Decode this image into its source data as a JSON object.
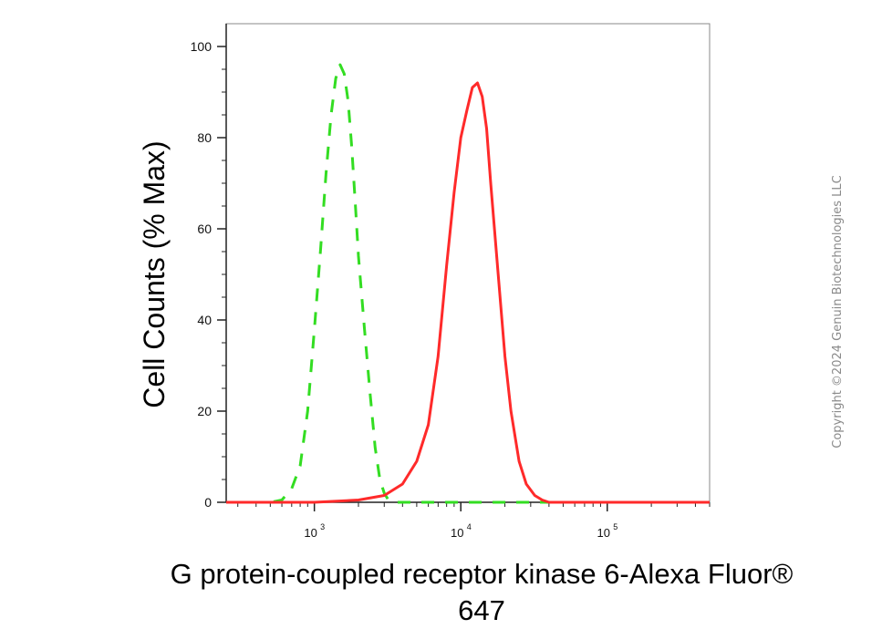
{
  "chart_data": {
    "type": "line",
    "xscale": "log",
    "xlim": [
      250,
      500000
    ],
    "ylim": [
      0,
      100
    ],
    "ylabel": "Cell Counts (% Max)",
    "xlabel_line1": "G protein-coupled receptor kinase 6-Alexa Fluor®",
    "xlabel_line2": "647",
    "yticks": [
      0,
      20,
      40,
      60,
      80,
      100
    ],
    "xticks": [
      {
        "base": "10",
        "exp": "3",
        "value": 1000
      },
      {
        "base": "10",
        "exp": "4",
        "value": 10000
      },
      {
        "base": "10",
        "exp": "5",
        "value": 100000
      }
    ],
    "series": [
      {
        "color": "#33dd22",
        "style": "dashed",
        "x": [
          250,
          500,
          600,
          700,
          800,
          900,
          1000,
          1100,
          1200,
          1300,
          1400,
          1500,
          1600,
          1700,
          1800,
          1900,
          2000,
          2200,
          2400,
          2600,
          2800,
          3000,
          3200,
          3600,
          4000,
          5000,
          8000,
          20000,
          100000,
          500000
        ],
        "y": [
          0,
          0,
          0.5,
          3,
          8,
          20,
          38,
          55,
          72,
          85,
          93,
          96,
          94,
          88,
          78,
          66,
          54,
          38,
          24,
          12,
          5,
          2,
          0.5,
          0,
          0,
          0,
          0,
          0,
          0,
          0
        ]
      },
      {
        "color": "#ff2a2a",
        "style": "solid",
        "x": [
          250,
          1000,
          2000,
          3000,
          4000,
          5000,
          6000,
          7000,
          8000,
          9000,
          10000,
          11000,
          12000,
          13000,
          14000,
          15000,
          16000,
          18000,
          20000,
          22000,
          25000,
          28000,
          32000,
          36000,
          40000,
          50000,
          60000,
          100000,
          500000
        ],
        "y": [
          0,
          0,
          0.5,
          1.5,
          4,
          9,
          17,
          32,
          52,
          68,
          80,
          86,
          91,
          92,
          89,
          82,
          70,
          50,
          32,
          20,
          9,
          4,
          1.5,
          0.5,
          0,
          0,
          0,
          0,
          0
        ]
      }
    ]
  },
  "watermark": "Copyright ©2024 Genuin Biotechnologies LLC"
}
